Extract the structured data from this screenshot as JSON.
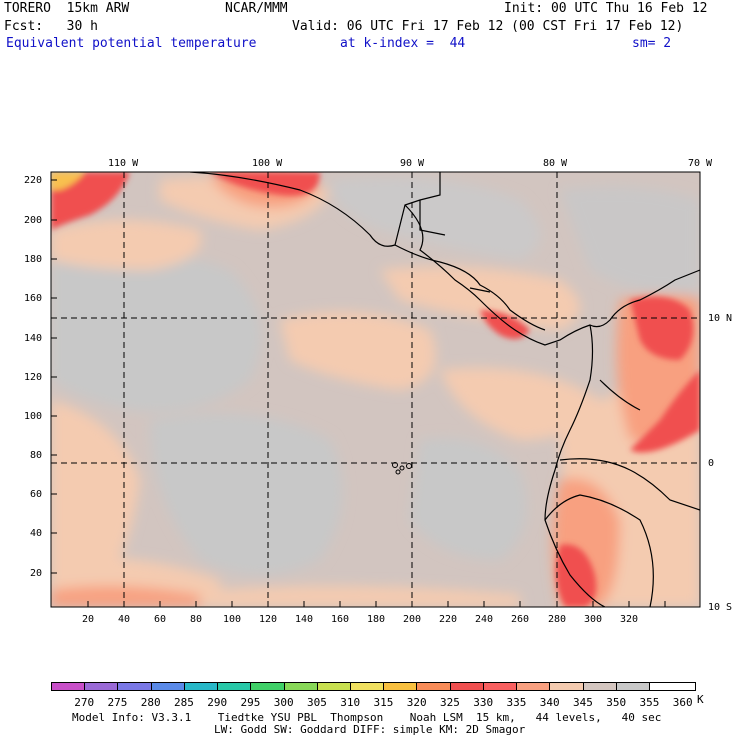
{
  "header": {
    "line1_left": "TORERO  15km ARW",
    "line1_mid": "NCAR/MMM",
    "line1_right": "Init: 00 UTC Thu 16 Feb 12",
    "line2_left": "Fcst:   30 h",
    "line2_right": "Valid: 06 UTC Fri 17 Feb 12 (00 CST Fri 17 Feb 12)",
    "field_name": "Equivalent potential temperature",
    "level": "at k-index =  44",
    "smoothing": "sm= 2"
  },
  "map": {
    "lon_labels": [
      "110 W",
      "100 W",
      "90 W",
      "80 W",
      "70 W"
    ],
    "lat_labels": [
      "10 N",
      "0",
      "10 S"
    ],
    "x_grid_labels": [
      "20",
      "40",
      "60",
      "80",
      "100",
      "120",
      "140",
      "160",
      "180",
      "200",
      "220",
      "240",
      "260",
      "280",
      "300",
      "320"
    ],
    "y_grid_labels": [
      "220",
      "200",
      "180",
      "160",
      "140",
      "120",
      "100",
      "80",
      "60",
      "40",
      "20"
    ]
  },
  "colorbar": {
    "unit": "K",
    "labels": [
      "270",
      "275",
      "280",
      "285",
      "290",
      "295",
      "300",
      "305",
      "310",
      "315",
      "320",
      "325",
      "330",
      "335",
      "340",
      "345",
      "350",
      "355",
      "360"
    ],
    "colors": [
      "#c84fc8",
      "#9a6ad6",
      "#7a78e6",
      "#5a8ae8",
      "#28b8c8",
      "#28c8a8",
      "#40d068",
      "#88d858",
      "#c8e050",
      "#f0e060",
      "#f8c040",
      "#f88c58",
      "#f05050",
      "#f86060",
      "#f8a080",
      "#f4cbb0",
      "#d4c6c0",
      "#c8c8c8",
      "#ffffff"
    ]
  },
  "footer": {
    "line1": "Model Info: V3.3.1    Tiedtke YSU PBL  Thompson    Noah LSM  15 km,   44 levels,   40 sec",
    "line2": "LW: Godd SW: Goddard DIFF: simple KM: 2D Smagor"
  }
}
